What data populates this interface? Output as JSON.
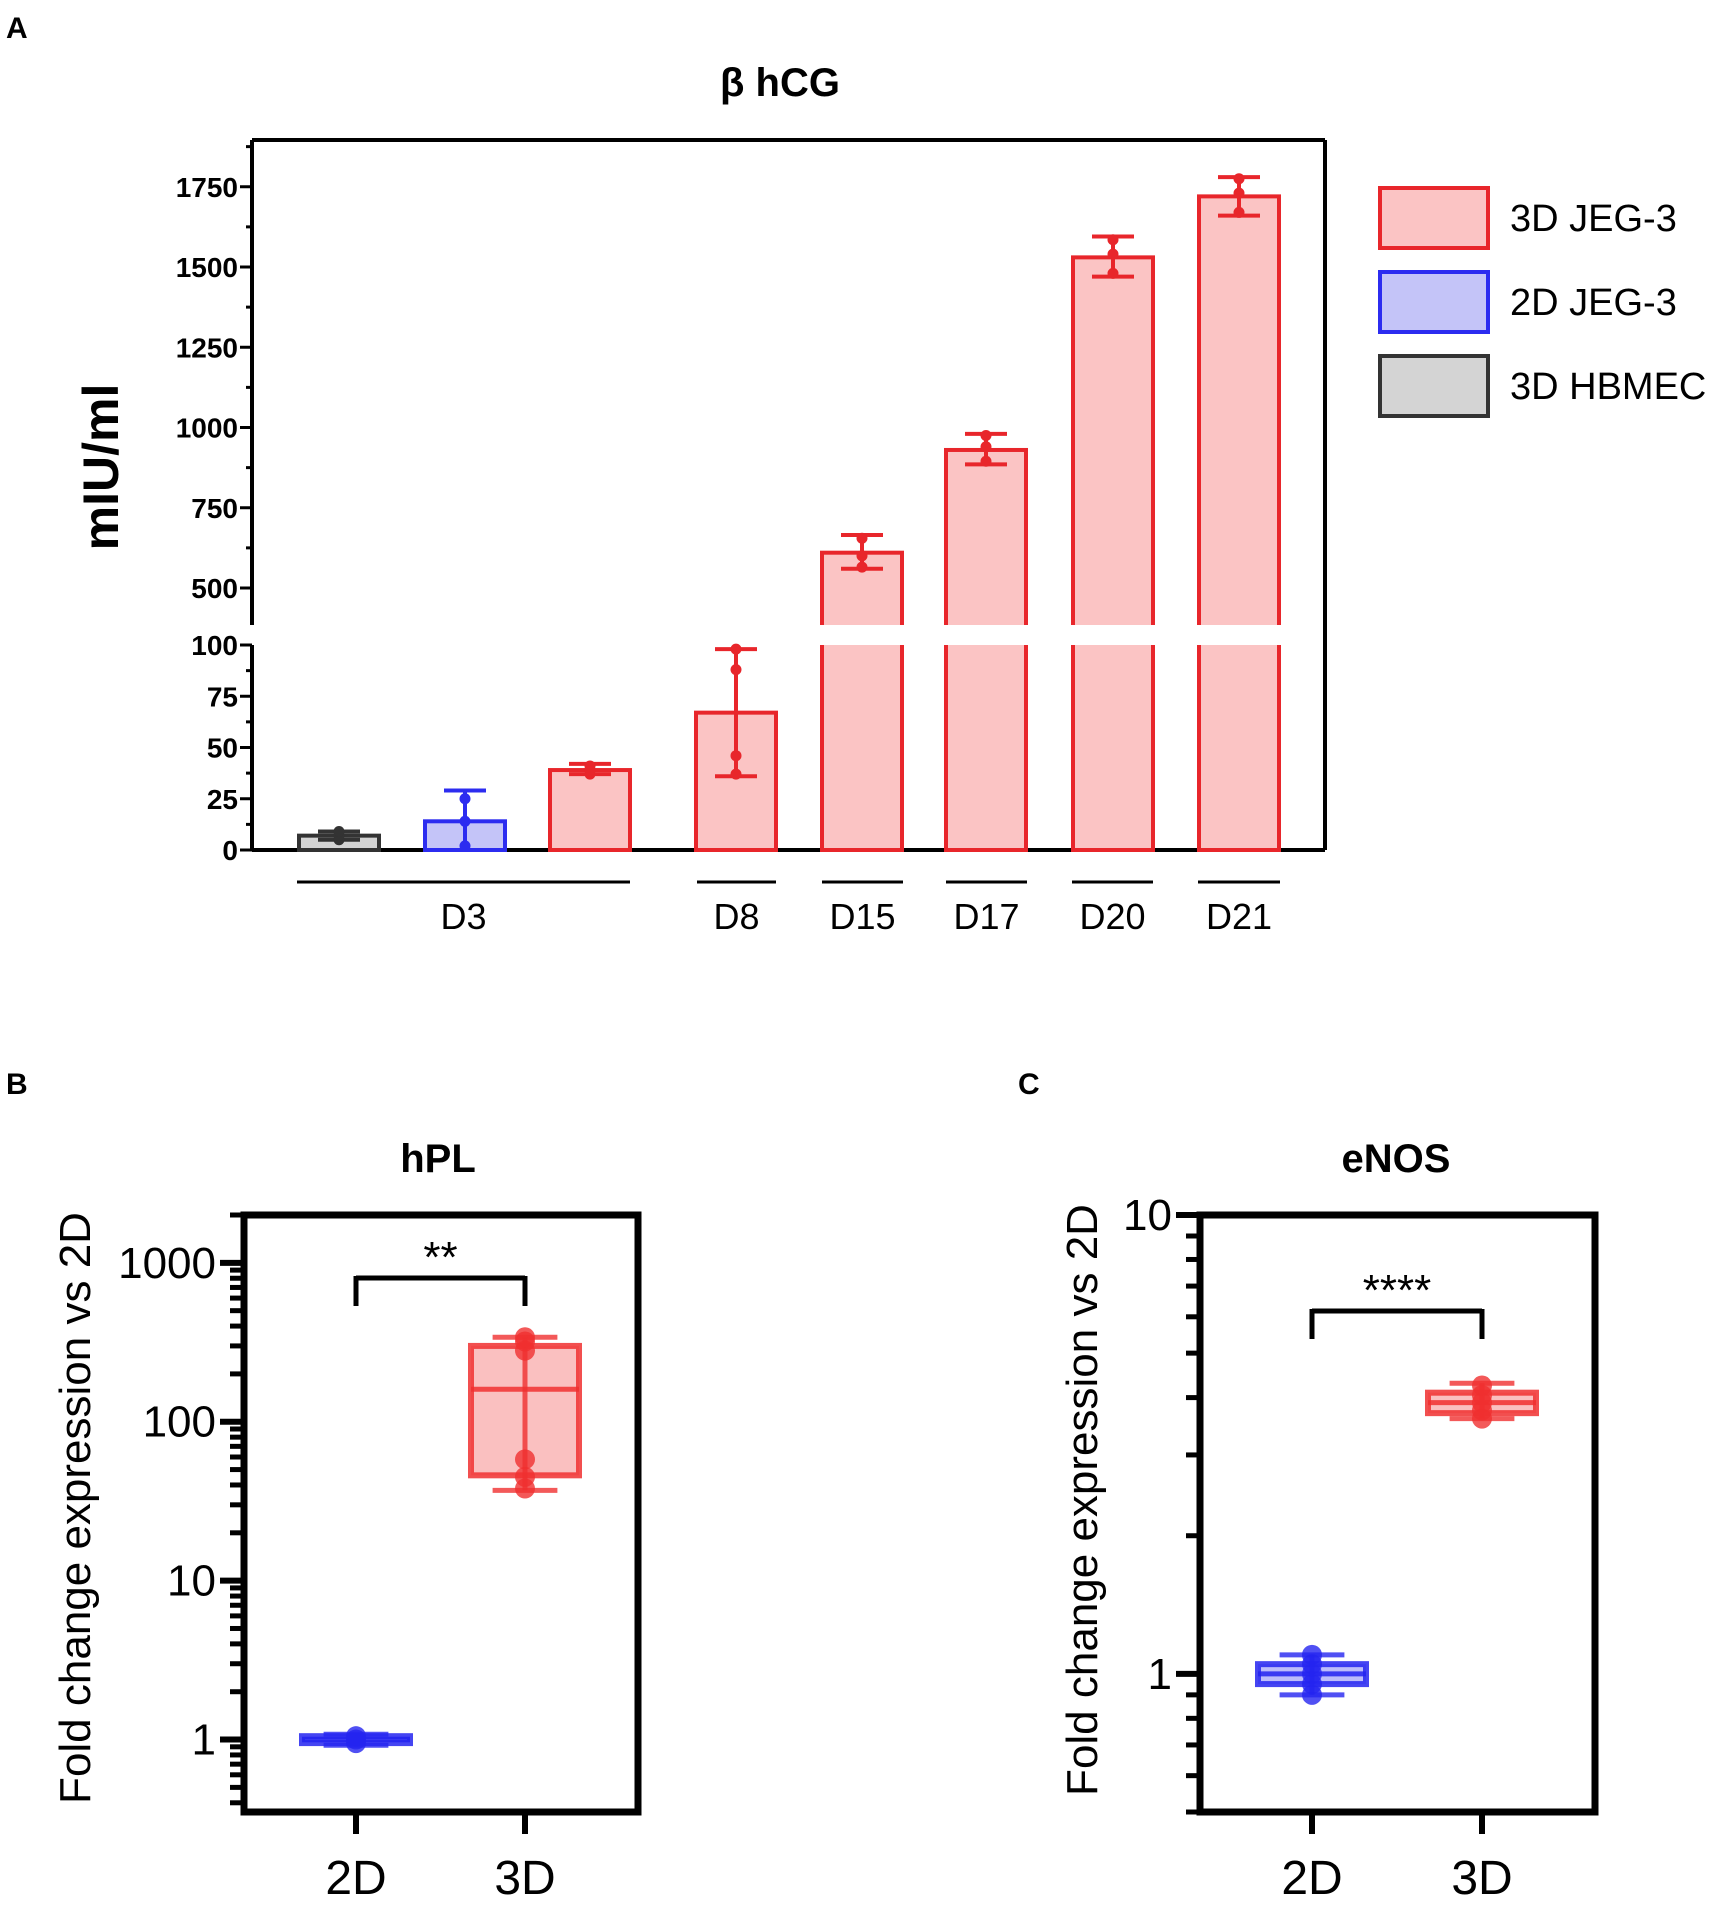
{
  "panels": {
    "a": "A",
    "b": "B",
    "c": "C"
  },
  "chart_data": [
    {
      "type": "bar",
      "panel": "A",
      "title": "β hCG",
      "ylabel": "mIU/ml",
      "y_axis": "broken",
      "lower_segment": {
        "range": [
          0,
          100
        ],
        "ticks": [
          "0",
          "25",
          "50",
          "75",
          "100"
        ]
      },
      "upper_segment": {
        "range": [
          400,
          1900
        ],
        "ticks": [
          "500",
          "750",
          "1000",
          "1250",
          "1500",
          "1750"
        ]
      },
      "groups": [
        {
          "label": "D3",
          "bars": [
            "3D HBMEC",
            "2D JEG-3",
            "3D JEG-3"
          ]
        },
        {
          "label": "D8",
          "bars": [
            "3D JEG-3"
          ]
        },
        {
          "label": "D15",
          "bars": [
            "3D JEG-3"
          ]
        },
        {
          "label": "D17",
          "bars": [
            "3D JEG-3"
          ]
        },
        {
          "label": "D20",
          "bars": [
            "3D JEG-3"
          ]
        },
        {
          "label": "D21",
          "bars": [
            "3D JEG-3"
          ]
        }
      ],
      "bars": [
        {
          "series": "3D HBMEC",
          "day": "D3",
          "mean": 7,
          "error": [
            5,
            9
          ],
          "points": [
            5,
            7,
            9
          ]
        },
        {
          "series": "2D JEG-3",
          "day": "D3",
          "mean": 14,
          "error": [
            0,
            29
          ],
          "points": [
            2,
            14,
            25
          ]
        },
        {
          "series": "3D JEG-3",
          "day": "D3",
          "mean": 39,
          "error": [
            37,
            42
          ],
          "points": [
            37,
            39,
            41
          ]
        },
        {
          "series": "3D JEG-3",
          "day": "D8",
          "mean": 67,
          "error": [
            36,
            98
          ],
          "points": [
            37,
            46,
            88,
            98
          ]
        },
        {
          "series": "3D JEG-3",
          "day": "D15",
          "mean": 610,
          "error": [
            560,
            665
          ],
          "points": [
            565,
            600,
            655
          ]
        },
        {
          "series": "3D JEG-3",
          "day": "D17",
          "mean": 930,
          "error": [
            885,
            980
          ],
          "points": [
            895,
            940,
            975
          ]
        },
        {
          "series": "3D JEG-3",
          "day": "D20",
          "mean": 1530,
          "error": [
            1470,
            1595
          ],
          "points": [
            1480,
            1540,
            1585
          ]
        },
        {
          "series": "3D JEG-3",
          "day": "D21",
          "mean": 1720,
          "error": [
            1660,
            1780
          ],
          "points": [
            1670,
            1730,
            1775
          ]
        }
      ],
      "legend": [
        {
          "name": "3D JEG-3",
          "fill": "#fbc4c4",
          "stroke": "#e8262b"
        },
        {
          "name": "2D JEG-3",
          "fill": "#c4c4f8",
          "stroke": "#2c2cf0"
        },
        {
          "name": "3D HBMEC",
          "fill": "#d4d4d4",
          "stroke": "#333333"
        }
      ]
    },
    {
      "type": "box",
      "panel": "B",
      "title": "hPL",
      "ylabel": "Fold change expression vs 2D",
      "yscale": "log",
      "ylim": [
        0.35,
        2000
      ],
      "yticks": [
        "1",
        "10",
        "100",
        "1000"
      ],
      "categories": [
        "2D",
        "3D"
      ],
      "boxes": [
        {
          "name": "2D",
          "min": 0.92,
          "q1": 0.95,
          "median": 1.0,
          "q3": 1.05,
          "max": 1.08,
          "points": [
            0.95,
            1.0,
            1.05
          ],
          "color": "#2424f0"
        },
        {
          "name": "3D",
          "min": 37,
          "q1": 46,
          "median": 160,
          "q3": 300,
          "max": 340,
          "points": [
            38,
            45,
            58,
            280,
            320,
            340
          ],
          "color": "#f03030"
        }
      ],
      "significance": "**"
    },
    {
      "type": "box",
      "panel": "C",
      "title": "eNOS",
      "ylabel": "Fold change expression vs 2D",
      "yscale": "log",
      "ylim": [
        0.5,
        10
      ],
      "yticks": [
        "1",
        "10"
      ],
      "categories": [
        "2D",
        "3D"
      ],
      "boxes": [
        {
          "name": "2D",
          "min": 0.9,
          "q1": 0.95,
          "median": 1.0,
          "q3": 1.05,
          "max": 1.1,
          "points": [
            0.9,
            0.95,
            1.0,
            1.05,
            1.1
          ],
          "color": "#2424f0"
        },
        {
          "name": "3D",
          "min": 3.6,
          "q1": 3.7,
          "median": 3.9,
          "q3": 4.1,
          "max": 4.3,
          "points": [
            3.6,
            3.75,
            3.9,
            4.05,
            4.25
          ],
          "color": "#f03030"
        }
      ],
      "significance": "****"
    }
  ]
}
